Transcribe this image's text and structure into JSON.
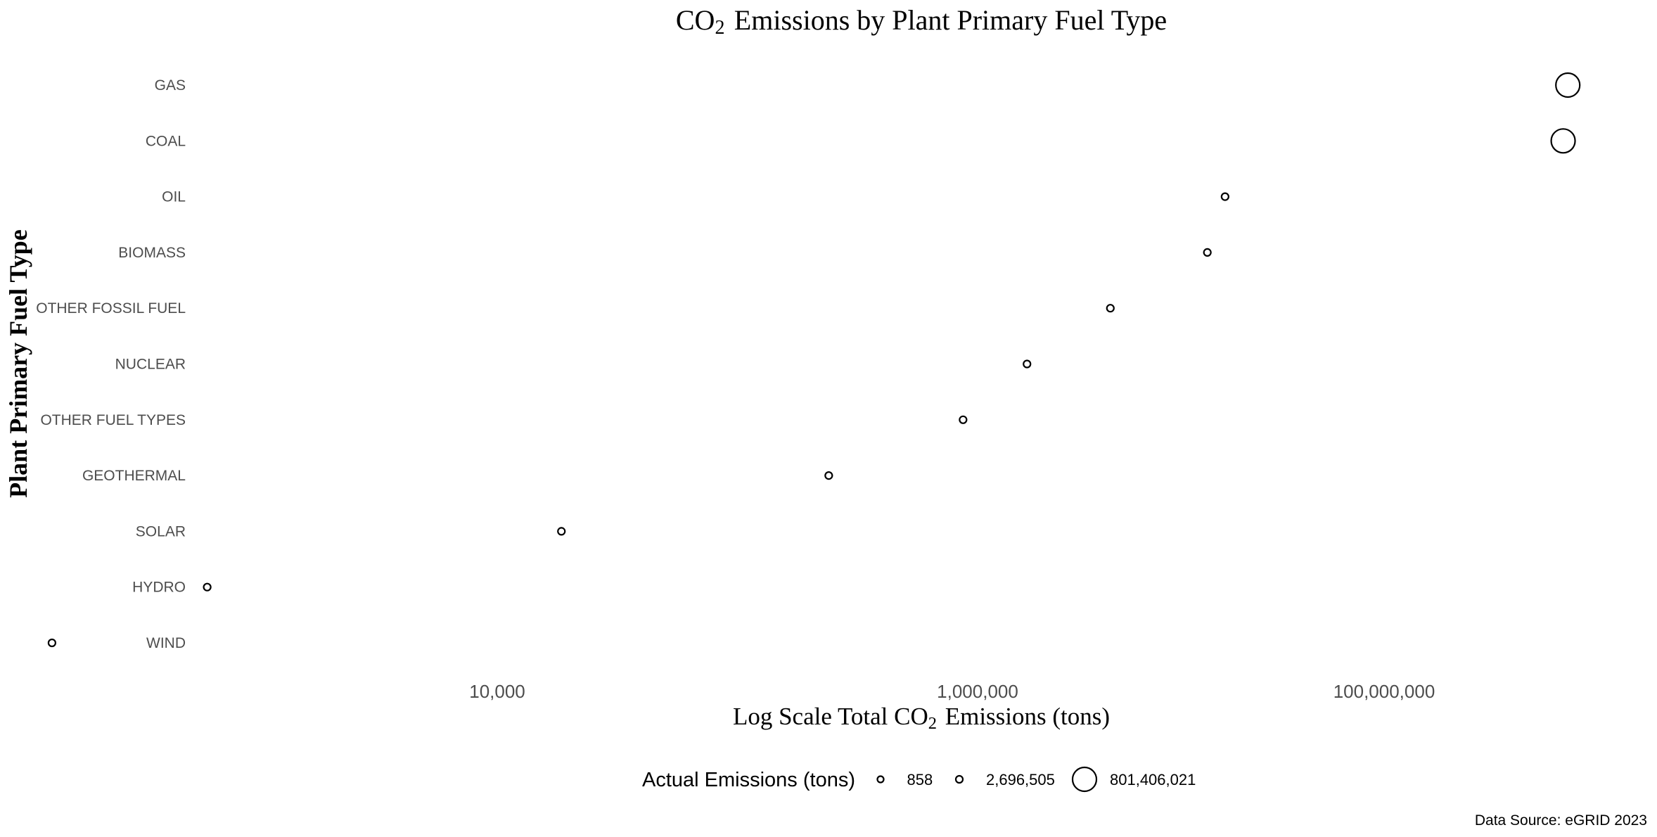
{
  "chart_data": {
    "type": "scatter",
    "title": "CO₂ Emissions by Plant Primary Fuel Type",
    "xlabel": "Log Scale Total CO₂ Emissions (tons)",
    "ylabel": "Plant Primary Fuel Type",
    "x_scale": "log10",
    "x_ticks": [
      10000,
      1000000,
      100000000
    ],
    "x_tick_labels": [
      "10,000",
      "1,000,000",
      "100,000,000"
    ],
    "categories": [
      "GAS",
      "COAL",
      "OIL",
      "BIOMASS",
      "OTHER FOSSIL FUEL",
      "NUCLEAR",
      "OTHER FUEL TYPES",
      "GEOTHERMAL",
      "SOLAR",
      "HYDRO",
      "WIND"
    ],
    "series": [
      {
        "values": [
          801406021,
          760000000,
          16500000,
          13500000,
          4500000,
          1750000,
          870000,
          240000,
          18500,
          620,
          140
        ]
      }
    ],
    "size_legend": {
      "title": "Actual Emissions (tons)",
      "values": [
        858,
        2696505,
        801406021
      ],
      "labels": [
        "858",
        "2,696,505",
        "801,406,021"
      ]
    },
    "grid": false,
    "legend_position": "bottom",
    "caption": "Data Source: eGRID 2023"
  }
}
